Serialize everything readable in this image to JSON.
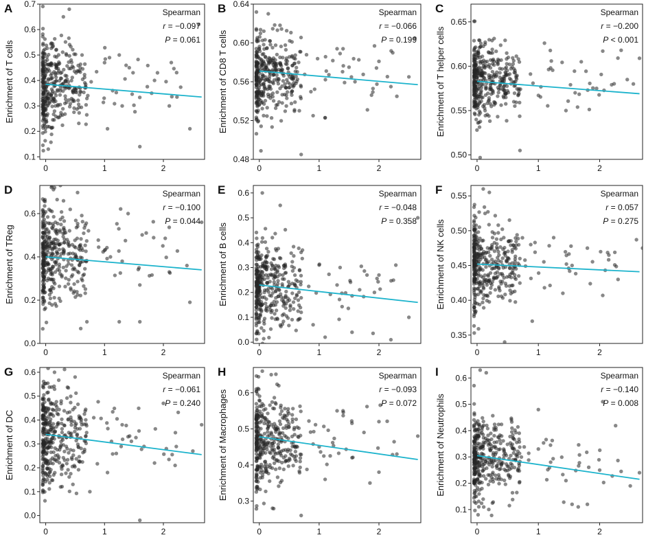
{
  "chart_data": [
    {
      "panel": "A",
      "type": "scatter",
      "ylabel": "Enrichment of T cells",
      "xlabel": "",
      "xlim": [
        -0.1,
        2.7
      ],
      "ylim": [
        0.09,
        0.7
      ],
      "x_ticks": [
        0,
        1,
        2
      ],
      "y_ticks": [
        0.1,
        0.2,
        0.3,
        0.4,
        0.5,
        0.6,
        0.7
      ],
      "y_tick_labels": [
        "0.1",
        "0.2",
        "0.3",
        "0.4",
        "0.5",
        "0.6",
        "0.7"
      ],
      "seed": 11,
      "y_center": 0.38,
      "y_spread": 0.1,
      "fit": {
        "x": [
          0,
          2.65
        ],
        "y": [
          0.385,
          0.335
        ]
      },
      "outliers": [
        [
          1.25,
          0.5
        ],
        [
          1.42,
          0.45
        ],
        [
          1.0,
          0.47
        ],
        [
          1.9,
          0.43
        ],
        [
          1.85,
          0.4
        ],
        [
          2.1,
          0.3
        ],
        [
          2.45,
          0.21
        ],
        [
          1.6,
          0.14
        ],
        [
          2.6,
          0.62
        ],
        [
          1.05,
          0.21
        ],
        [
          1.3,
          0.3
        ],
        [
          1.8,
          0.35
        ],
        [
          0.4,
          0.68
        ],
        [
          0.3,
          0.65
        ]
      ],
      "stats": {
        "method": "Spearman",
        "r_label": "r",
        "r_value": "= −0.097",
        "p_label": "P",
        "p_value": "= 0.061"
      }
    },
    {
      "panel": "B",
      "type": "scatter",
      "ylabel": "Enrichment of CD8 T cells",
      "xlabel": "",
      "xlim": [
        -0.1,
        2.7
      ],
      "ylim": [
        0.48,
        0.64
      ],
      "x_ticks": [
        0,
        1,
        2
      ],
      "y_ticks": [
        0.48,
        0.52,
        0.56,
        0.6,
        0.64
      ],
      "y_tick_labels": [
        "0.48",
        "0.52",
        "0.56",
        "0.60",
        "0.64"
      ],
      "seed": 23,
      "y_center": 0.568,
      "y_spread": 0.022,
      "fit": {
        "x": [
          0,
          2.65
        ],
        "y": [
          0.571,
          0.557
        ]
      },
      "outliers": [
        [
          1.3,
          0.594
        ],
        [
          1.4,
          0.594
        ],
        [
          2.6,
          0.605
        ],
        [
          2.0,
          0.581
        ],
        [
          1.1,
          0.523
        ],
        [
          0.9,
          0.525
        ],
        [
          2.2,
          0.555
        ],
        [
          2.5,
          0.565
        ],
        [
          1.9,
          0.553
        ],
        [
          1.6,
          0.56
        ],
        [
          0.7,
          0.485
        ],
        [
          0.15,
          0.63
        ],
        [
          1.5,
          0.575
        ],
        [
          2.3,
          0.545
        ]
      ],
      "stats": {
        "method": "Spearman",
        "r_label": "r",
        "r_value": "= −0.066",
        "p_label": "P",
        "p_value": "= 0.199"
      }
    },
    {
      "panel": "C",
      "type": "scatter",
      "ylabel": "Enrichment of T helper cells",
      "xlabel": "",
      "xlim": [
        -0.1,
        2.7
      ],
      "ylim": [
        0.495,
        0.67
      ],
      "x_ticks": [
        0,
        1,
        2
      ],
      "y_ticks": [
        0.5,
        0.55,
        0.6,
        0.65
      ],
      "y_tick_labels": [
        "0.50",
        "0.55",
        "0.60",
        "0.65"
      ],
      "seed": 37,
      "y_center": 0.583,
      "y_spread": 0.022,
      "fit": {
        "x": [
          0,
          2.65
        ],
        "y": [
          0.583,
          0.569
        ]
      },
      "outliers": [
        [
          2.05,
          0.617
        ],
        [
          2.35,
          0.618
        ],
        [
          2.65,
          0.609
        ],
        [
          1.7,
          0.605
        ],
        [
          1.1,
          0.626
        ],
        [
          1.2,
          0.598
        ],
        [
          1.95,
          0.575
        ],
        [
          2.45,
          0.585
        ],
        [
          2.55,
          0.58
        ],
        [
          1.45,
          0.55
        ],
        [
          0.6,
          0.56
        ],
        [
          0.7,
          0.505
        ],
        [
          0.05,
          0.497
        ],
        [
          1.6,
          0.57
        ]
      ],
      "stats": {
        "method": "Spearman",
        "r_label": "r",
        "r_value": "= −0.200",
        "p_label": "P",
        "p_value": "< 0.001"
      }
    },
    {
      "panel": "D",
      "type": "scatter",
      "ylabel": "Enrichment of TReg",
      "xlabel": "",
      "xlim": [
        -0.1,
        2.7
      ],
      "ylim": [
        0.0,
        0.73
      ],
      "x_ticks": [
        0,
        1,
        2
      ],
      "y_ticks": [
        0.0,
        0.2,
        0.4,
        0.6
      ],
      "y_tick_labels": [
        "0.0",
        "0.2",
        "0.4",
        "0.6"
      ],
      "seed": 41,
      "y_center": 0.4,
      "y_spread": 0.13,
      "fit": {
        "x": [
          0,
          2.65
        ],
        "y": [
          0.4,
          0.34
        ]
      },
      "outliers": [
        [
          1.4,
          0.6
        ],
        [
          2.65,
          0.56
        ],
        [
          1.0,
          0.43
        ],
        [
          1.1,
          0.4
        ],
        [
          1.6,
          0.27
        ],
        [
          2.1,
          0.33
        ],
        [
          2.4,
          0.36
        ],
        [
          2.45,
          0.19
        ],
        [
          1.25,
          0.1
        ],
        [
          1.6,
          0.1
        ],
        [
          0.7,
          0.1
        ],
        [
          0.25,
          0.73
        ],
        [
          0.15,
          0.72
        ],
        [
          1.3,
          0.38
        ]
      ],
      "stats": {
        "method": "Spearman",
        "r_label": "r",
        "r_value": "= −0.100",
        "p_label": "P",
        "p_value": "= 0.044"
      }
    },
    {
      "panel": "E",
      "type": "scatter",
      "ylabel": "Enrichment of B cells",
      "xlabel": "",
      "xlim": [
        -0.1,
        2.7
      ],
      "ylim": [
        -0.005,
        0.63
      ],
      "x_ticks": [
        0,
        1,
        2
      ],
      "y_ticks": [
        0.0,
        0.1,
        0.2,
        0.3,
        0.4,
        0.5,
        0.6
      ],
      "y_tick_labels": [
        "0.0",
        "0.1",
        "0.2",
        "0.3",
        "0.4",
        "0.5",
        "0.6"
      ],
      "seed": 53,
      "y_center": 0.22,
      "y_spread": 0.1,
      "fit": {
        "x": [
          0,
          2.65
        ],
        "y": [
          0.23,
          0.16
        ]
      },
      "outliers": [
        [
          2.65,
          0.5
        ],
        [
          1.35,
          0.3
        ],
        [
          1.0,
          0.31
        ],
        [
          1.3,
          0.23
        ],
        [
          2.0,
          0.27
        ],
        [
          1.8,
          0.27
        ],
        [
          2.5,
          0.1
        ],
        [
          2.2,
          0.01
        ],
        [
          1.1,
          0.02
        ],
        [
          1.55,
          0.04
        ],
        [
          0.9,
          0.07
        ],
        [
          0.7,
          0.12
        ],
        [
          0.05,
          0.6
        ],
        [
          0.35,
          0.55
        ]
      ],
      "stats": {
        "method": "Spearman",
        "r_label": "r",
        "r_value": "= −0.048",
        "p_label": "P",
        "p_value": "= 0.358"
      }
    },
    {
      "panel": "F",
      "type": "scatter",
      "ylabel": "Enrichment of NK cells",
      "xlabel": "",
      "xlim": [
        -0.1,
        2.7
      ],
      "ylim": [
        0.338,
        0.565
      ],
      "x_ticks": [
        0,
        1,
        2
      ],
      "y_ticks": [
        0.35,
        0.4,
        0.45,
        0.5,
        0.55
      ],
      "y_tick_labels": [
        "0.35",
        "0.40",
        "0.45",
        "0.50",
        "0.55"
      ],
      "seed": 67,
      "y_center": 0.452,
      "y_spread": 0.03,
      "fit": {
        "x": [
          0,
          2.65
        ],
        "y": [
          0.452,
          0.441
        ]
      },
      "outliers": [
        [
          2.6,
          0.487
        ],
        [
          2.7,
          0.475
        ],
        [
          2.15,
          0.465
        ],
        [
          1.8,
          0.475
        ],
        [
          1.25,
          0.49
        ],
        [
          2.3,
          0.43
        ],
        [
          2.05,
          0.407
        ],
        [
          1.4,
          0.41
        ],
        [
          1.1,
          0.418
        ],
        [
          0.9,
          0.37
        ],
        [
          0.45,
          0.34
        ],
        [
          0.1,
          0.56
        ],
        [
          0.2,
          0.555
        ],
        [
          1.55,
          0.45
        ]
      ],
      "stats": {
        "method": "Spearman",
        "r_label": "r",
        "r_value": "= 0.057",
        "p_label": "P",
        "p_value": "= 0.275"
      }
    },
    {
      "panel": "G",
      "type": "scatter",
      "ylabel": "Enrichment of DC",
      "xlabel": "",
      "xlim": [
        -0.1,
        2.7
      ],
      "ylim": [
        -0.03,
        0.62
      ],
      "x_ticks": [
        0,
        1,
        2
      ],
      "y_ticks": [
        0.0,
        0.1,
        0.2,
        0.3,
        0.4,
        0.5,
        0.6
      ],
      "y_tick_labels": [
        "0.0",
        "0.1",
        "0.2",
        "0.3",
        "0.4",
        "0.5",
        "0.6"
      ],
      "seed": 79,
      "y_center": 0.33,
      "y_spread": 0.11,
      "fit": {
        "x": [
          0,
          2.65
        ],
        "y": [
          0.34,
          0.255
        ]
      },
      "outliers": [
        [
          2.65,
          0.38
        ],
        [
          2.0,
          0.47
        ],
        [
          1.3,
          0.38
        ],
        [
          1.4,
          0.33
        ],
        [
          1.2,
          0.26
        ],
        [
          2.5,
          0.27
        ],
        [
          2.05,
          0.28
        ],
        [
          1.85,
          0.22
        ],
        [
          2.2,
          0.21
        ],
        [
          1.6,
          -0.02
        ],
        [
          0.75,
          0.1
        ],
        [
          0.5,
          0.58
        ],
        [
          0.15,
          0.6
        ],
        [
          1.05,
          0.18
        ]
      ],
      "stats": {
        "method": "Spearman",
        "r_label": "r",
        "r_value": "= −0.061",
        "p_label": "P",
        "p_value": "= 0.240"
      }
    },
    {
      "panel": "H",
      "type": "scatter",
      "ylabel": "Enrichment of Macrophages",
      "xlabel": "",
      "xlim": [
        -0.1,
        2.7
      ],
      "ylim": [
        0.24,
        0.67
      ],
      "x_ticks": [
        0,
        1,
        2
      ],
      "y_ticks": [
        0.3,
        0.4,
        0.5,
        0.6
      ],
      "y_tick_labels": [
        "0.3",
        "0.4",
        "0.5",
        "0.6"
      ],
      "seed": 83,
      "y_center": 0.47,
      "y_spread": 0.07,
      "fit": {
        "x": [
          0,
          2.65
        ],
        "y": [
          0.478,
          0.415
        ]
      },
      "outliers": [
        [
          1.3,
          0.55
        ],
        [
          1.4,
          0.55
        ],
        [
          2.0,
          0.52
        ],
        [
          2.65,
          0.48
        ],
        [
          2.3,
          0.43
        ],
        [
          1.75,
          0.49
        ],
        [
          1.55,
          0.42
        ],
        [
          2.0,
          0.38
        ],
        [
          1.85,
          0.35
        ],
        [
          1.1,
          0.36
        ],
        [
          0.7,
          0.26
        ],
        [
          0.05,
          0.66
        ],
        [
          0.2,
          0.65
        ],
        [
          1.0,
          0.45
        ]
      ],
      "stats": {
        "method": "Spearman",
        "r_label": "r",
        "r_value": "= −0.093",
        "p_label": "P",
        "p_value": "= 0.072"
      }
    },
    {
      "panel": "I",
      "type": "scatter",
      "ylabel": "Enrichment of Neutrophils",
      "xlabel": "",
      "xlim": [
        -0.1,
        2.7
      ],
      "ylim": [
        0.05,
        0.64
      ],
      "x_ticks": [
        0,
        1,
        2
      ],
      "y_ticks": [
        0.1,
        0.2,
        0.3,
        0.4,
        0.5,
        0.6
      ],
      "y_tick_labels": [
        "0.1",
        "0.2",
        "0.3",
        "0.4",
        "0.5",
        "0.6"
      ],
      "seed": 97,
      "y_center": 0.29,
      "y_spread": 0.09,
      "fit": {
        "x": [
          0,
          2.65
        ],
        "y": [
          0.305,
          0.215
        ]
      },
      "outliers": [
        [
          2.05,
          0.51
        ],
        [
          1.0,
          0.48
        ],
        [
          2.0,
          0.25
        ],
        [
          2.5,
          0.19
        ],
        [
          2.65,
          0.24
        ],
        [
          2.35,
          0.245
        ],
        [
          1.55,
          0.12
        ],
        [
          1.45,
          0.21
        ],
        [
          1.8,
          0.12
        ],
        [
          1.65,
          0.11
        ],
        [
          1.2,
          0.28
        ],
        [
          0.05,
          0.63
        ],
        [
          0.15,
          0.62
        ],
        [
          1.0,
          0.33
        ]
      ],
      "stats": {
        "method": "Spearman",
        "r_label": "r",
        "r_value": "= −0.140",
        "p_label": "P",
        "p_value": "= 0.008"
      }
    }
  ]
}
